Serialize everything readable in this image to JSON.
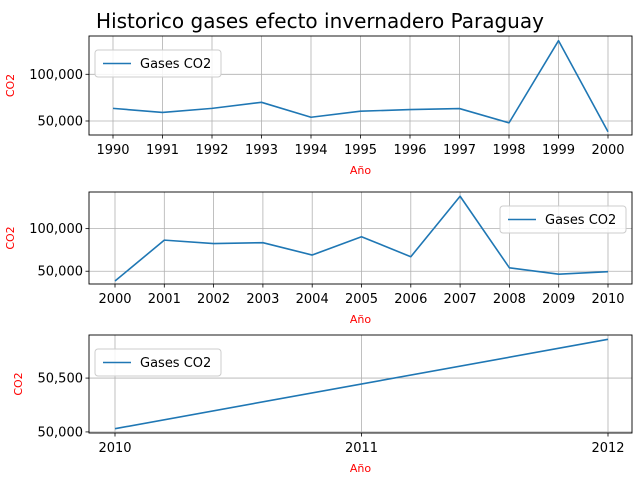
{
  "title": "Historico gases efecto invernadero Paraguay",
  "colors": {
    "line": "#1f77b4",
    "label": "#ff0000",
    "grid": "#b0b0b0",
    "axes": "#000000"
  },
  "chart_data": [
    {
      "type": "line",
      "xlabel": "Año",
      "ylabel": "CO2",
      "legend": "upper left",
      "grid": true,
      "x": [
        1990,
        1991,
        1992,
        1993,
        1994,
        1995,
        1996,
        1997,
        1998,
        1999,
        2000
      ],
      "series": [
        {
          "name": "Gases CO2",
          "values": [
            63500,
            59200,
            63500,
            70000,
            54000,
            60500,
            62200,
            63300,
            48000,
            136000,
            38500
          ]
        }
      ],
      "ylim": [
        35000,
        141000
      ],
      "yticks": [
        50000,
        100000
      ],
      "ytick_labels": [
        "50,000",
        "100,000"
      ]
    },
    {
      "type": "line",
      "xlabel": "Año",
      "ylabel": "CO2",
      "legend": "upper right",
      "grid": true,
      "x": [
        2000,
        2001,
        2002,
        2003,
        2004,
        2005,
        2006,
        2007,
        2008,
        2009,
        2010
      ],
      "series": [
        {
          "name": "Gases CO2",
          "values": [
            38500,
            86500,
            82500,
            83500,
            69000,
            90500,
            67000,
            138000,
            54000,
            46500,
            49500
          ]
        }
      ],
      "ylim": [
        35000,
        143000
      ],
      "yticks": [
        50000,
        100000
      ],
      "ytick_labels": [
        "50,000",
        "100,000"
      ]
    },
    {
      "type": "line",
      "xlabel": "Año",
      "ylabel": "CO2",
      "legend": "upper left",
      "grid": true,
      "x": [
        2010,
        2012
      ],
      "series": [
        {
          "name": "Gases CO2",
          "values": [
            50030,
            50860
          ]
        }
      ],
      "ylim": [
        49990,
        50900
      ],
      "xticks": [
        2010,
        2011,
        2012
      ],
      "yticks": [
        50000,
        50500
      ],
      "ytick_labels": [
        "50,000",
        "50,500"
      ]
    }
  ]
}
